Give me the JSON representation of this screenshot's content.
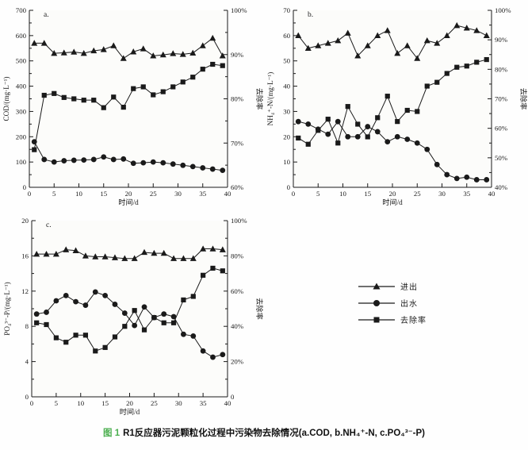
{
  "colors": {
    "ink": "#1a1a1a",
    "caption_accent": "#4caf50",
    "plot_bg": "#fcfcfa"
  },
  "caption": {
    "figure_label": "图 1",
    "title": "R1反应器污泥颗粒化过程中污染物去除情况(a.COD, b.NH₄⁺-N, c.PO₄³⁻-P)"
  },
  "legend": {
    "items": [
      {
        "marker": "triangle",
        "label": "进出"
      },
      {
        "marker": "circle",
        "label": "出水"
      },
      {
        "marker": "square",
        "label": "去除率"
      }
    ]
  },
  "chart_data": [
    {
      "id": "a",
      "type": "line",
      "panel_label": "a.",
      "xlabel": "时间/d",
      "ylabel_left": "COD/(mg·L⁻¹)",
      "ylabel_right": "去除率",
      "xlim": [
        0,
        40
      ],
      "xticks": [
        0,
        5,
        10,
        15,
        20,
        25,
        30,
        35,
        40
      ],
      "ylim_left": [
        0,
        700
      ],
      "yticks_left": [
        0,
        100,
        200,
        300,
        400,
        500,
        600,
        700
      ],
      "ylim_right": [
        60,
        100
      ],
      "yticks_right": [
        60,
        70,
        80,
        90,
        100
      ],
      "yticks_right_labels": [
        "60%",
        "70%",
        "80%",
        "90%",
        "100%"
      ],
      "x": [
        1,
        3,
        5,
        7,
        9,
        11,
        13,
        15,
        17,
        19,
        21,
        23,
        25,
        27,
        29,
        31,
        33,
        35,
        37,
        39
      ],
      "series": [
        {
          "name": "进出",
          "marker": "triangle",
          "axis": "left",
          "values": [
            570,
            570,
            530,
            532,
            535,
            530,
            540,
            545,
            560,
            510,
            536,
            548,
            520,
            524,
            529,
            526,
            531,
            560,
            590,
            520
          ]
        },
        {
          "name": "出水",
          "marker": "circle",
          "axis": "left",
          "values": [
            180,
            110,
            100,
            105,
            107,
            108,
            110,
            120,
            110,
            112,
            95,
            97,
            100,
            97,
            92,
            87,
            82,
            77,
            72,
            67
          ]
        },
        {
          "name": "去除率",
          "marker": "square",
          "axis": "right",
          "values": [
            68.5,
            80.8,
            81.2,
            80.3,
            80.0,
            79.7,
            79.7,
            78.0,
            80.4,
            78.1,
            82.3,
            82.7,
            80.9,
            81.6,
            82.7,
            83.8,
            84.9,
            86.7,
            87.8,
            87.5
          ]
        }
      ]
    },
    {
      "id": "b",
      "type": "line",
      "panel_label": "b.",
      "xlabel": "时间/d",
      "ylabel_left": "NH₄⁺-N/(mg·L⁻¹)",
      "ylabel_right": "去除率",
      "xlim": [
        0,
        40
      ],
      "xticks": [
        0,
        5,
        10,
        15,
        20,
        25,
        30,
        35,
        40
      ],
      "ylim_left": [
        0,
        70
      ],
      "yticks_left": [
        0,
        10,
        20,
        30,
        40,
        50,
        60,
        70
      ],
      "ylim_right": [
        40,
        100
      ],
      "yticks_right": [
        40,
        50,
        60,
        70,
        80,
        90,
        100
      ],
      "yticks_right_labels": [
        "40%",
        "50%",
        "60%",
        "70%",
        "80%",
        "90%",
        "100%"
      ],
      "x": [
        1,
        3,
        5,
        7,
        9,
        11,
        13,
        15,
        17,
        19,
        21,
        23,
        25,
        27,
        29,
        31,
        33,
        35,
        37,
        39
      ],
      "series": [
        {
          "name": "进出",
          "marker": "triangle",
          "axis": "left",
          "values": [
            60,
            55,
            56,
            57,
            58,
            61,
            52,
            56,
            60,
            62,
            53,
            56,
            51,
            58,
            57,
            60,
            64,
            63,
            62,
            60
          ]
        },
        {
          "name": "出水",
          "marker": "circle",
          "axis": "left",
          "values": [
            26,
            25,
            23,
            21,
            26,
            20,
            20,
            24,
            22,
            18,
            20,
            19,
            17.5,
            15,
            9,
            5,
            3.5,
            4,
            3,
            3
          ]
        },
        {
          "name": "去除率",
          "marker": "square",
          "axis": "right",
          "values": [
            56.7,
            54.6,
            59.3,
            63.1,
            55.0,
            67.4,
            61.4,
            57.1,
            63.6,
            70.9,
            62.3,
            66.1,
            65.7,
            74.3,
            75.6,
            78.6,
            80.7,
            81.1,
            82.4,
            83.3
          ]
        }
      ]
    },
    {
      "id": "c",
      "type": "line",
      "panel_label": "c.",
      "xlabel": "时间/d",
      "ylabel_left": "PO₄³⁻-P/(mg·L⁻¹)",
      "ylabel_right": "去除率",
      "xlim": [
        0,
        40
      ],
      "xticks": [
        0,
        5,
        10,
        15,
        20,
        25,
        30,
        35,
        40
      ],
      "ylim_left": [
        0,
        20
      ],
      "yticks_left": [
        0,
        4,
        8,
        12,
        16,
        20
      ],
      "ylim_right": [
        0,
        100
      ],
      "yticks_right": [
        0,
        20,
        40,
        60,
        80,
        100
      ],
      "yticks_right_labels": [
        "0",
        "20%",
        "40%",
        "60%",
        "80%",
        "100%"
      ],
      "x": [
        1,
        3,
        5,
        7,
        9,
        11,
        13,
        15,
        17,
        19,
        21,
        23,
        25,
        27,
        29,
        31,
        33,
        35,
        37,
        39
      ],
      "series": [
        {
          "name": "进出",
          "marker": "triangle",
          "axis": "left",
          "values": [
            16.2,
            16.2,
            16.2,
            16.7,
            16.6,
            16.0,
            15.9,
            15.9,
            15.8,
            15.7,
            15.7,
            16.4,
            16.3,
            16.3,
            15.7,
            15.7,
            15.7,
            16.8,
            16.8,
            16.7
          ]
        },
        {
          "name": "出水",
          "marker": "circle",
          "axis": "left",
          "values": [
            9.4,
            9.6,
            10.9,
            11.5,
            10.8,
            10.4,
            11.9,
            11.5,
            10.5,
            9.5,
            8.1,
            10.2,
            9.0,
            9.4,
            9.1,
            7.1,
            6.9,
            5.2,
            4.5,
            4.8
          ]
        },
        {
          "name": "去除率",
          "marker": "square",
          "axis": "right",
          "values": [
            42,
            41,
            33.5,
            31,
            35,
            35,
            26,
            28,
            34,
            40,
            49,
            38,
            45,
            42,
            42,
            55,
            57,
            69,
            73,
            71.5
          ]
        }
      ]
    }
  ]
}
